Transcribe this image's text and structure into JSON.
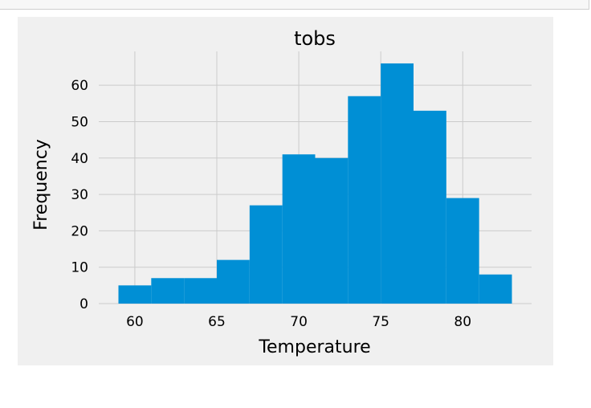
{
  "chart_data": {
    "type": "histogram",
    "title": "tobs",
    "xlabel": "Temperature",
    "ylabel": "Frequency",
    "bins": [
      {
        "x0": 59.0,
        "x1": 61.0,
        "count": 5
      },
      {
        "x0": 61.0,
        "x1": 63.0,
        "count": 7
      },
      {
        "x0": 63.0,
        "x1": 65.0,
        "count": 7
      },
      {
        "x0": 65.0,
        "x1": 67.0,
        "count": 12
      },
      {
        "x0": 67.0,
        "x1": 69.0,
        "count": 27
      },
      {
        "x0": 69.0,
        "x1": 71.0,
        "count": 41
      },
      {
        "x0": 71.0,
        "x1": 73.0,
        "count": 40
      },
      {
        "x0": 73.0,
        "x1": 75.0,
        "count": 57
      },
      {
        "x0": 75.0,
        "x1": 77.0,
        "count": 66
      },
      {
        "x0": 77.0,
        "x1": 79.0,
        "count": 53
      },
      {
        "x0": 79.0,
        "x1": 81.0,
        "count": 29
      },
      {
        "x0": 81.0,
        "x1": 83.0,
        "count": 8
      }
    ],
    "xticks": [
      60,
      65,
      70,
      75,
      80
    ],
    "yticks": [
      0,
      10,
      20,
      30,
      40,
      50,
      60
    ],
    "xlim": [
      57.8,
      84.2
    ],
    "ylim": [
      0,
      69.3
    ],
    "grid": true,
    "style": "fivethirtyeight",
    "colors": {
      "bar": "#008fd5",
      "figure_bg": "#f0f0f0",
      "plot_bg": "#f0f0f0",
      "grid": "#cbcbcb",
      "text": "#000000"
    }
  }
}
